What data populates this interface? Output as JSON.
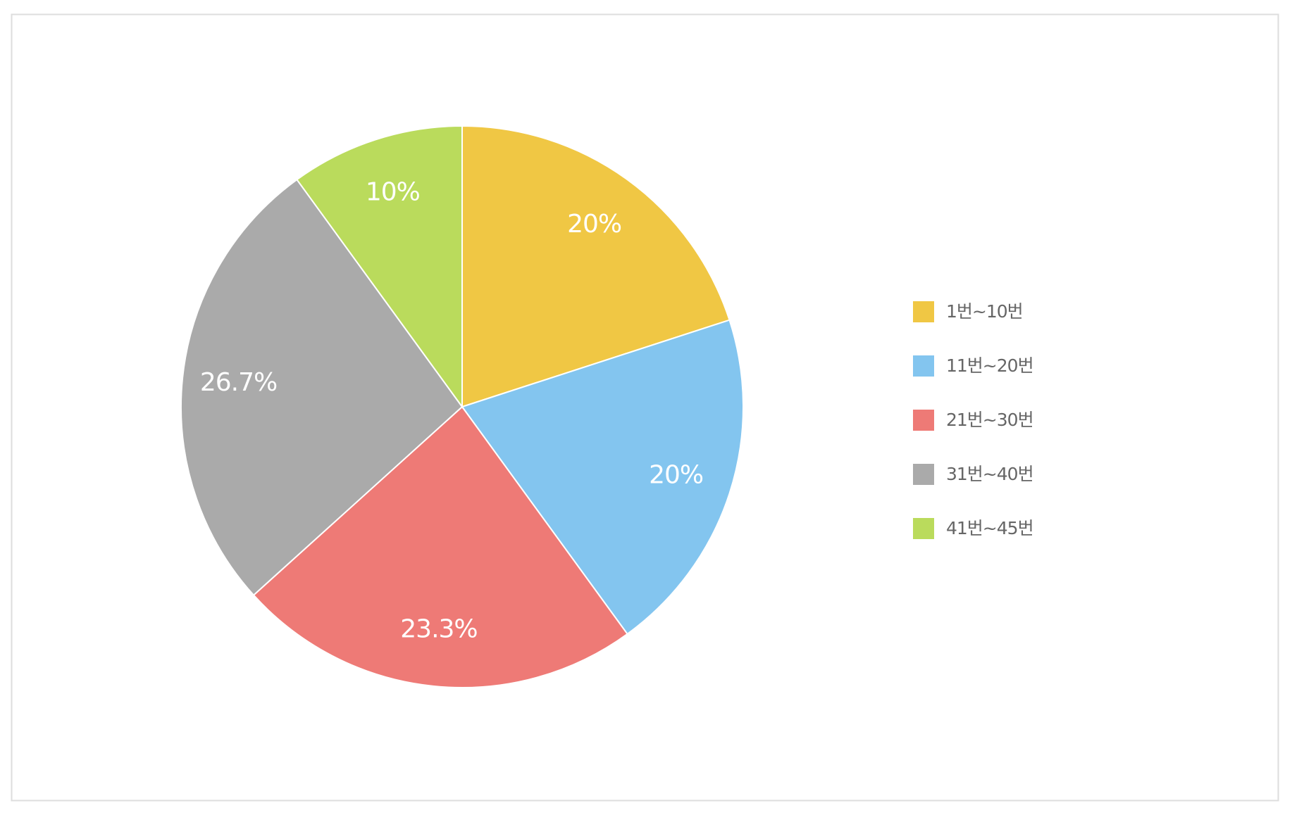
{
  "chart_data": {
    "type": "pie",
    "categories": [
      "1번~10번",
      "11번~20번",
      "21번~30번",
      "31번~40번",
      "41번~45번"
    ],
    "values": [
      20,
      20,
      23.3,
      26.7,
      10
    ],
    "value_labels": [
      "20%",
      "20%",
      "23.3%",
      "26.7%",
      "10%"
    ],
    "colors": [
      "#f0c744",
      "#83c5ef",
      "#ee7a76",
      "#aaaaaa",
      "#badb5c"
    ],
    "legend": "right"
  }
}
